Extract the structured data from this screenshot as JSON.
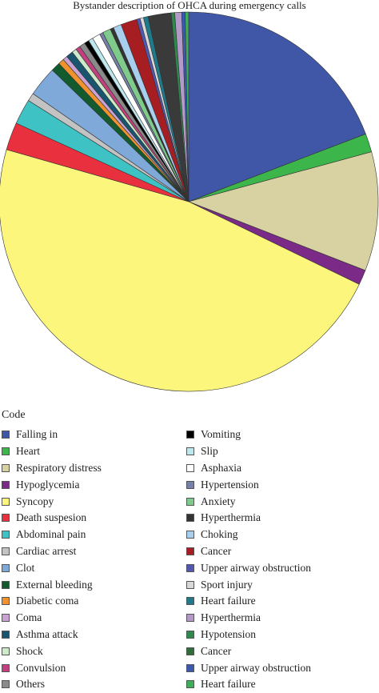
{
  "chart_data": {
    "type": "pie",
    "title": "Bystander description of OHCA during emergency calls",
    "legend_title": "Code",
    "legend_placement": "bottom",
    "slices": [
      {
        "label": "Falling in",
        "value": 19.5,
        "color": "#3f57a6"
      },
      {
        "label": "Heart",
        "value": 1.6,
        "color": "#3cb54a"
      },
      {
        "label": "Respiratory distress",
        "value": 10.3,
        "color": "#d8d2a3"
      },
      {
        "label": "Hypoglycemia",
        "value": 1.3,
        "color": "#7b2a87"
      },
      {
        "label": "Syncopy",
        "value": 48.0,
        "color": "#fcf67c"
      },
      {
        "label": "Death suspesion",
        "value": 2.4,
        "color": "#e8303f"
      },
      {
        "label": "Abdominal pain",
        "value": 2.2,
        "color": "#3ec2c4"
      },
      {
        "label": "Cardiac arrest",
        "value": 0.7,
        "color": "#c3c3c3"
      },
      {
        "label": "Clot",
        "value": 2.6,
        "color": "#7ea9d9"
      },
      {
        "label": "External bleeding",
        "value": 0.8,
        "color": "#135b2e"
      },
      {
        "label": "Diabetic coma",
        "value": 0.5,
        "color": "#f0932c"
      },
      {
        "label": "Coma",
        "value": 0.4,
        "color": "#c9a3d4"
      },
      {
        "label": "Asthma attack",
        "value": 0.6,
        "color": "#1a5570"
      },
      {
        "label": "Shock",
        "value": 0.4,
        "color": "#cfeac8"
      },
      {
        "label": "Convulsion",
        "value": 0.4,
        "color": "#c2407e"
      },
      {
        "label": "Others",
        "value": 0.5,
        "color": "#8a8a8a"
      },
      {
        "label": "Vomiting",
        "value": 0.4,
        "color": "#000000"
      },
      {
        "label": "Slip",
        "value": 0.4,
        "color": "#bfe8ee"
      },
      {
        "label": "Asphaxia",
        "value": 0.7,
        "color": "#ffffff"
      },
      {
        "label": "Hypertension",
        "value": 0.3,
        "color": "#7781a8"
      },
      {
        "label": "Anxiety",
        "value": 0.7,
        "color": "#7fcb8b"
      },
      {
        "label": "Hyperthermia",
        "value": 0.3,
        "color": "#333333"
      },
      {
        "label": "Choking",
        "value": 0.7,
        "color": "#a8cfee"
      },
      {
        "label": "Cancer",
        "value": 1.4,
        "color": "#a61e22"
      },
      {
        "label": "Upper airway obstruction",
        "value": 0.3,
        "color": "#5058b0"
      },
      {
        "label": "Sport injury",
        "value": 0.3,
        "color": "#d8d8d8"
      },
      {
        "label": "Heart failure",
        "value": 0.4,
        "color": "#1f7a8c"
      },
      {
        "label": "Hyperthermia",
        "value": 2.0,
        "color": "#3a3a3a"
      },
      {
        "label": "Hypotension",
        "value": 0.3,
        "color": "#2e8a4c"
      },
      {
        "label": "Cancer",
        "value": 0.6,
        "color": "#b49ac9"
      },
      {
        "label": "Upper airway obstruction",
        "value": 0.3,
        "color": "#3a5ab0"
      },
      {
        "label": "Heart failure",
        "value": 0.3,
        "color": "#3fae5a"
      }
    ],
    "legend": [
      {
        "label": "Falling in",
        "color": "#3f57a6"
      },
      {
        "label": "Heart",
        "color": "#3cb54a"
      },
      {
        "label": "Respiratory distress",
        "color": "#d8d2a3"
      },
      {
        "label": "Hypoglycemia",
        "color": "#7b2a87"
      },
      {
        "label": "Syncopy",
        "color": "#fcf67c"
      },
      {
        "label": "Death suspesion",
        "color": "#e8303f"
      },
      {
        "label": "Abdominal pain",
        "color": "#3ec2c4"
      },
      {
        "label": "Cardiac arrest",
        "color": "#c3c3c3"
      },
      {
        "label": "Clot",
        "color": "#7ea9d9"
      },
      {
        "label": "External bleeding",
        "color": "#135b2e"
      },
      {
        "label": "Diabetic coma",
        "color": "#f0932c"
      },
      {
        "label": "Coma",
        "color": "#c9a3d4"
      },
      {
        "label": "Asthma attack",
        "color": "#1a5570"
      },
      {
        "label": "Shock",
        "color": "#cfeac8"
      },
      {
        "label": "Convulsion",
        "color": "#c2407e"
      },
      {
        "label": "Others",
        "color": "#8a8a8a"
      },
      {
        "label": "Vomiting",
        "color": "#000000"
      },
      {
        "label": "Slip",
        "color": "#bfe8ee"
      },
      {
        "label": "Asphaxia",
        "color": "#ffffff"
      },
      {
        "label": "Hypertension",
        "color": "#7781a8"
      },
      {
        "label": "Anxiety",
        "color": "#7fcb8b"
      },
      {
        "label": "Hyperthermia",
        "color": "#333333"
      },
      {
        "label": "Choking",
        "color": "#a8cfee"
      },
      {
        "label": "Cancer",
        "color": "#a61e22"
      },
      {
        "label": "Upper airway obstruction",
        "color": "#5058b0"
      },
      {
        "label": "Sport injury",
        "color": "#d8d8d8"
      },
      {
        "label": "Heart failure",
        "color": "#1f7a8c"
      },
      {
        "label": "Hyperthermia",
        "color": "#b49ac9"
      },
      {
        "label": "Hypotension",
        "color": "#2e8a4c"
      },
      {
        "label": "Cancer",
        "color": "#2e6e3a"
      },
      {
        "label": "Upper airway obstruction",
        "color": "#3a5ab0"
      },
      {
        "label": "Heart failure",
        "color": "#3fae5a"
      }
    ]
  }
}
